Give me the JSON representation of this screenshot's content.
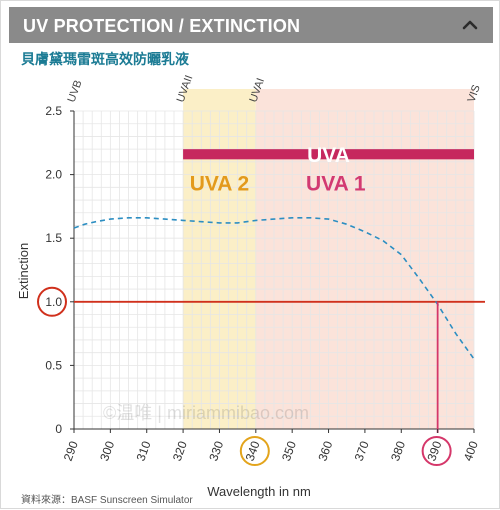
{
  "header": {
    "title": "UV PROTECTION / EXTINCTION",
    "toggle_icon": "chevron-up-icon"
  },
  "subtitle": "貝膚黛瑪雷斑高效防曬乳液",
  "source": "資料來源：BASF Sunscreen Simulator",
  "watermark": "©温唯 | miriammibao.com",
  "colors": {
    "header_bg": "#8a8a8a",
    "subtitle": "#1b7b94",
    "uva2_band": "#fbefc7",
    "uva1_band": "#fbe3da",
    "uva_bar": "#c6285e",
    "uva2_text": "#e39a1c",
    "uva1_text": "#d23a72",
    "curve": "#2c8ec2",
    "threshold": "#d0301c",
    "marker": "#d5376a",
    "marker_340": "#e3a41c"
  },
  "chart_data": {
    "type": "line",
    "xlabel": "Wavelength in nm",
    "ylabel": "Extinction",
    "xlim": [
      290,
      400
    ],
    "ylim": [
      0,
      2.5
    ],
    "x_ticks": [
      290,
      300,
      310,
      320,
      330,
      340,
      350,
      360,
      370,
      380,
      390,
      400
    ],
    "y_ticks": [
      0,
      0.5,
      1.0,
      1.5,
      2.0,
      2.5
    ],
    "y_tick_labels": [
      "0",
      "0.5",
      "1.0",
      "1.5",
      "2.0",
      "2.5"
    ],
    "grid": true,
    "series": [
      {
        "style": "dashed",
        "x": [
          290,
          293,
          296,
          300,
          305,
          310,
          315,
          320,
          325,
          330,
          335,
          340,
          345,
          350,
          355,
          360,
          365,
          370,
          375,
          380,
          385,
          390,
          395,
          400
        ],
        "y": [
          1.58,
          1.61,
          1.63,
          1.65,
          1.66,
          1.66,
          1.65,
          1.64,
          1.63,
          1.62,
          1.62,
          1.64,
          1.65,
          1.66,
          1.66,
          1.65,
          1.61,
          1.55,
          1.48,
          1.37,
          1.18,
          0.98,
          0.75,
          0.55
        ]
      }
    ],
    "threshold": {
      "y": 1.0,
      "label": "1.0"
    },
    "critical_wavelength": 390,
    "circled_ticks": [
      340,
      390
    ],
    "regions": [
      {
        "label": "UVA 2",
        "from": 320,
        "to": 340
      },
      {
        "label": "UVA 1",
        "from": 340,
        "to": 400
      },
      {
        "label": "UVA",
        "from": 320,
        "to": 400
      }
    ],
    "top_labels": [
      {
        "label": "UVB",
        "x": 290
      },
      {
        "label": "UVAII",
        "x": 320
      },
      {
        "label": "UVAI",
        "x": 340
      },
      {
        "label": "VIS",
        "x": 400
      }
    ]
  }
}
